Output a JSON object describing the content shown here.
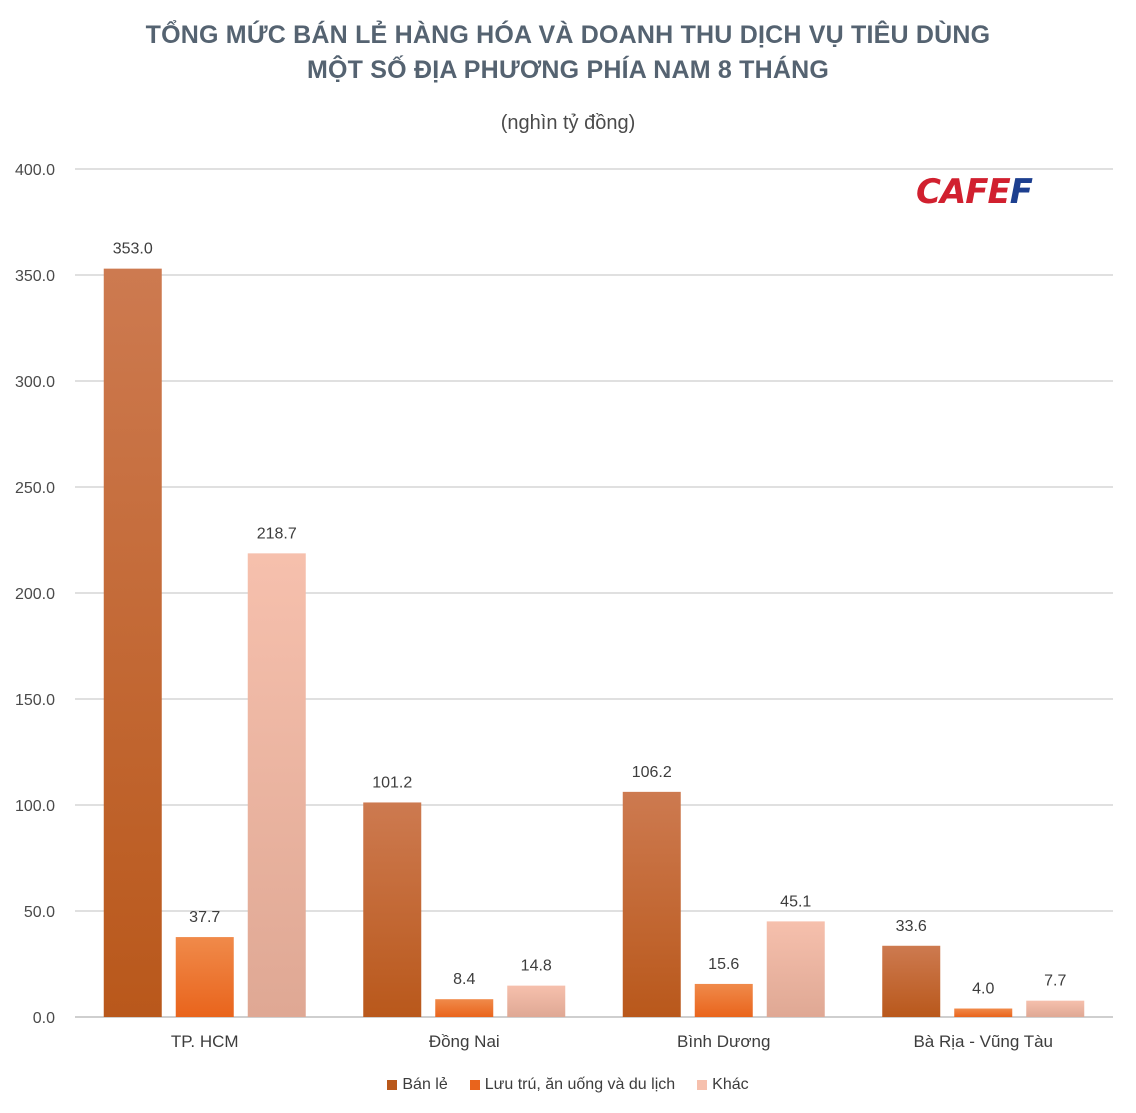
{
  "colors": {
    "ban_le_top": "#cd7a50",
    "ban_le_bottom": "#b9581b",
    "luu_tru_top": "#f08a4a",
    "luu_tru_bottom": "#e9641c",
    "khac_top": "#f6c0ad",
    "khac_bottom": "#dfa894",
    "grid": "#e0e0e0",
    "axis": "#cfcfcf"
  },
  "logo": {
    "part1": "CAFE",
    "part2": "F"
  },
  "chart_data": {
    "type": "bar",
    "title_line1": "TỔNG MỨC BÁN LẺ HÀNG HÓA VÀ DOANH THU DỊCH VỤ TIÊU DÙNG",
    "title_line2": "MỘT SỐ ĐỊA PHƯƠNG PHÍA NAM 8 THÁNG",
    "subtitle": "(nghìn tỷ đồng)",
    "categories": [
      "TP. HCM",
      "Đồng Nai",
      "Bình Dương",
      "Bà Rịa - Vũng Tàu"
    ],
    "series": [
      {
        "name": "Bán lẻ",
        "values": [
          353.0,
          101.2,
          106.2,
          33.6
        ],
        "labels": [
          "353.0",
          "101.2",
          "106.2",
          "33.6"
        ]
      },
      {
        "name": "Lưu trú, ăn uống và du lịch",
        "values": [
          37.7,
          8.4,
          15.6,
          4.0
        ],
        "labels": [
          "37.7",
          "8.4",
          "15.6",
          "4.0"
        ]
      },
      {
        "name": "Khác",
        "values": [
          218.7,
          14.8,
          45.1,
          7.7
        ],
        "labels": [
          "218.7",
          "14.8",
          "45.1",
          "7.7"
        ]
      }
    ],
    "yticks": [
      0,
      50,
      100,
      150,
      200,
      250,
      300,
      350,
      400
    ],
    "ytick_labels": [
      "0.0",
      "50.0",
      "100.0",
      "150.0",
      "200.0",
      "250.0",
      "300.0",
      "350.0",
      "400.0"
    ],
    "ylim": [
      0,
      400
    ],
    "grid": true,
    "legend": "bottom"
  }
}
